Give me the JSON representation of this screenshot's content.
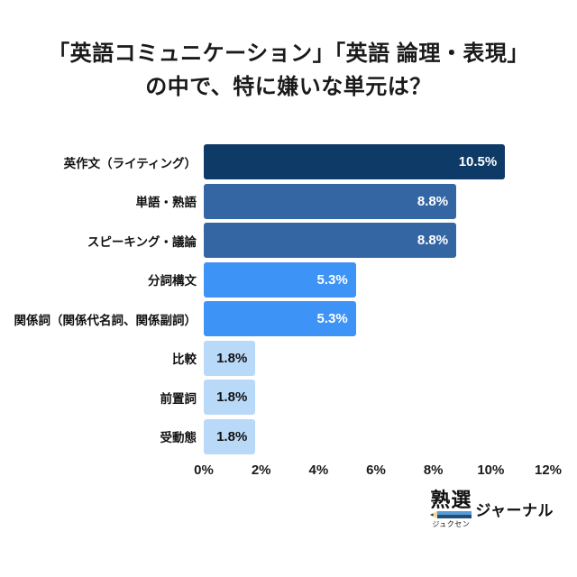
{
  "title": {
    "line1": "「英語コミュニケーション」「英語 論理・表現」",
    "line2": "の中で、特に嫌いな単元は？"
  },
  "chart_data": {
    "type": "bar",
    "orientation": "horizontal",
    "title": "「英語コミュニケーション」「英語 論理・表現」の中で、特に嫌いな単元は？",
    "categories": [
      "英作文（ライティング）",
      "単語・熟語",
      "スピーキング・議論",
      "分詞構文",
      "関係詞（関係代名詞、関係副詞）",
      "比較",
      "前置詞",
      "受動態"
    ],
    "values": [
      10.5,
      8.8,
      8.8,
      5.3,
      5.3,
      1.8,
      1.8,
      1.8
    ],
    "value_labels": [
      "10.5%",
      "8.8%",
      "8.8%",
      "5.3%",
      "5.3%",
      "1.8%",
      "1.8%",
      "1.8%"
    ],
    "bar_colors": [
      "#0d3a66",
      "#3566a4",
      "#3566a4",
      "#3e93f6",
      "#3e93f6",
      "#b9d9f9",
      "#b9d9f9",
      "#b9d9f9"
    ],
    "value_label_colors": [
      "#ffffff",
      "#ffffff",
      "#ffffff",
      "#ffffff",
      "#ffffff",
      "#111111",
      "#111111",
      "#111111"
    ],
    "xlim": [
      0,
      12
    ],
    "x_ticks": [
      "0%",
      "2%",
      "4%",
      "6%",
      "8%",
      "10%",
      "12%"
    ],
    "grid": false,
    "legend": false
  },
  "logo": {
    "brand": "熟選",
    "furigana": "ジュクセン",
    "suffix": "ジャーナル",
    "pencil_body_top_color": "#5b9bd5",
    "pencil_body_bottom_color": "#1f4e79",
    "pencil_tip_color": "#f0d9a0",
    "pencil_point_color": "#2b2b2b"
  }
}
